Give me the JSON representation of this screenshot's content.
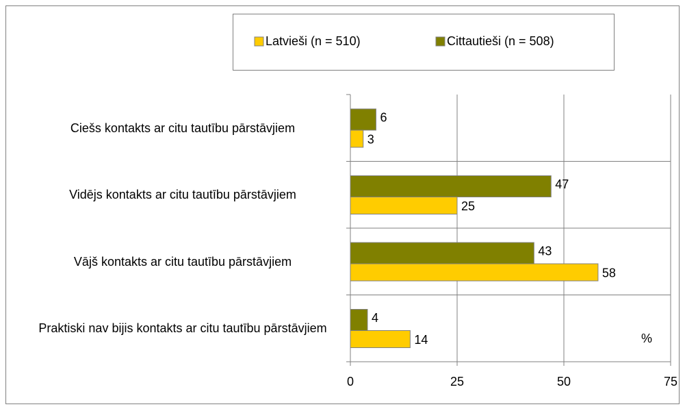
{
  "chart_data": {
    "type": "barh",
    "categories": [
      "Ciešs kontakts ar citu tautību pārstāvjiem",
      "Vidējs kontakts ar citu tautību pārstāvjiem",
      "Vājš kontakts ar citu tautību pārstāvjiem",
      "Praktiski nav bijis kontakts ar citu tautību pārstāvjiem"
    ],
    "series": [
      {
        "name": "Latvieši (n = 510)",
        "color": "#ffcc00",
        "values": [
          3,
          25,
          58,
          14
        ]
      },
      {
        "name": "Cittautieši (n = 508)",
        "color": "#808000",
        "values": [
          6,
          47,
          43,
          4
        ]
      }
    ],
    "xlim": [
      0,
      75
    ],
    "xticks": [
      0,
      25,
      50,
      75
    ],
    "grid": true,
    "annotation": "%"
  }
}
